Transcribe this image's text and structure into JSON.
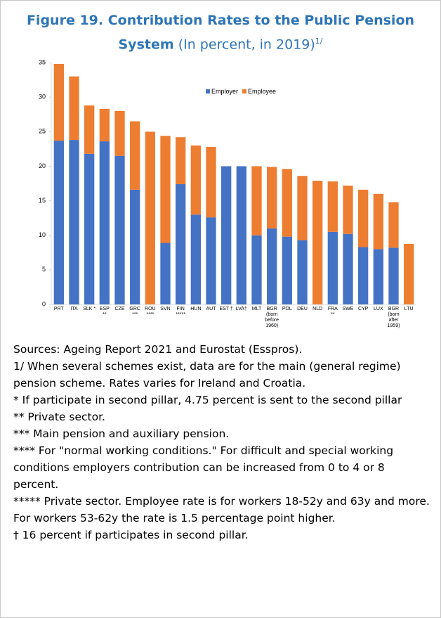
{
  "chart_data": {
    "type": "stacked_bar",
    "title": "Figure 19. Contribution Rates to the Public Pension System",
    "subtitle": "(In percent, in 2019)",
    "title_note": "1/",
    "categories": [
      "PRT",
      "ITA",
      "SLK *",
      "ESP\n**",
      "CZE",
      "GRC\n***",
      "ROU\n****",
      "SVN",
      "FIN\n*****",
      "HUN",
      "AUT",
      "EST †",
      "LVA†",
      "MLT",
      "BGR\n(born\nbefore\n1960)",
      "POL",
      "DEU",
      "NLD",
      "FRA\n**",
      "SWE",
      "CYP",
      "LUX",
      "BGR\n(born\nafter\n1959)",
      "LTU"
    ],
    "series": [
      {
        "name": "Employer",
        "color": "#4472c4",
        "values": [
          23.7,
          23.8,
          21.8,
          23.6,
          21.5,
          16.6,
          0,
          8.9,
          17.4,
          13,
          12.6,
          20,
          20,
          10,
          11,
          9.8,
          9.3,
          0,
          10.5,
          10.2,
          8.3,
          8,
          8.2,
          0
        ]
      },
      {
        "name": "Employee",
        "color": "#ed7d31",
        "values": [
          11.1,
          9.2,
          7,
          4.7,
          6.5,
          9.9,
          25,
          15.5,
          6.8,
          10,
          10.2,
          0,
          0,
          10,
          8.9,
          9.8,
          9.3,
          17.9,
          7.3,
          7,
          8.3,
          8,
          6.6,
          8.75
        ]
      }
    ],
    "ylim": [
      0,
      35
    ],
    "yticks": [
      0,
      5,
      10,
      15,
      20,
      25,
      30,
      35
    ],
    "grid": false,
    "legend": "top"
  },
  "notes": [
    "Sources: Ageing Report 2021 and Eurostat (Esspros).",
    "1/ When several schemes exist, data are for the main (general regime) pension scheme. Rates varies for Ireland and Croatia.",
    "* If participate in second pillar, 4.75 percent is sent to the second pillar",
    "** Private sector.",
    "*** Main pension and auxiliary pension.",
    "**** For \"normal working conditions.\" For difficult and special working conditions employers contribution can be increased from 0 to 4 or 8 percent.",
    "***** Private sector. Employee rate is for workers 18-52y and 63y and more. For workers 53-62y the rate is 1.5 percentage point higher.",
    "† 16 percent if participates in second pillar."
  ]
}
